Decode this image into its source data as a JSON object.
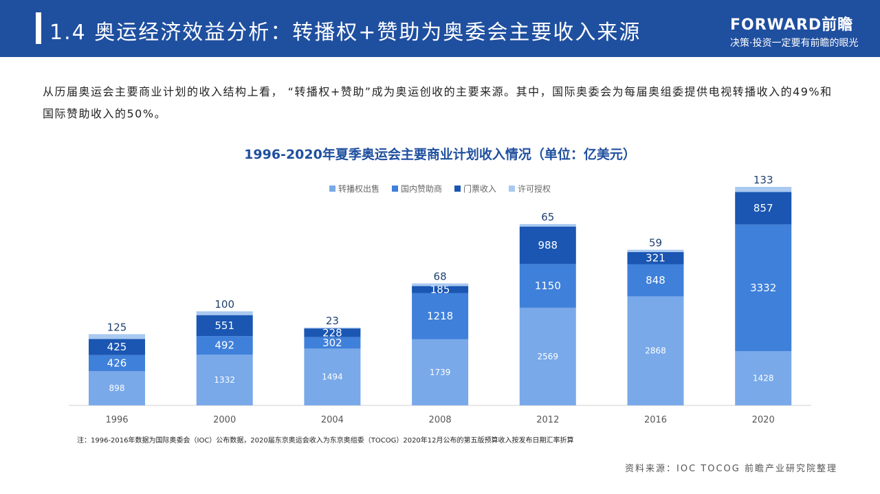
{
  "header": {
    "title": "1.4 奥运经济效益分析：转播权+赞助为奥委会主要收入来源",
    "logo_main": "FORWARD前瞻",
    "logo_sub": "决策·投资一定要有前瞻的眼光"
  },
  "intro": "从历届奥运会主要商业计划的收入结构上看，  “转播权+赞助”成为奥运创收的主要来源。其中，国际奥委会为每届奥组委提供电视转播收入的49%和国际赞助收入的50%。",
  "chart_data": {
    "type": "bar",
    "stacked": true,
    "title": "1996-2020年夏季奥运会主要商业计划收入情况（单位：亿美元）",
    "categories": [
      "1996",
      "2000",
      "2004",
      "2008",
      "2012",
      "2016",
      "2020"
    ],
    "series": [
      {
        "name": "转播权出售",
        "color": "#79a9e9",
        "values": [
          898,
          1332,
          1494,
          1739,
          2569,
          2868,
          1428
        ]
      },
      {
        "name": "国内赞助商",
        "color": "#3f80da",
        "values": [
          426,
          492,
          302,
          1218,
          1150,
          848,
          3332
        ]
      },
      {
        "name": "门票收入",
        "color": "#1a56b2",
        "values": [
          425,
          551,
          228,
          185,
          988,
          321,
          857
        ]
      },
      {
        "name": "许可授权",
        "color": "#a9c9f1",
        "values": [
          125,
          100,
          23,
          68,
          65,
          59,
          133
        ]
      }
    ],
    "legend": "top",
    "grid": false
  },
  "note": "注：1996-2016年数据为国际奥委会（IOC）公布数据，2020届东京奥运会收入为东京奥组委（TOCOG）2020年12月公布的第五版预算收入按发布日期汇率折算",
  "source": "资料来源：IOC TOCOG 前瞻产业研究院整理"
}
